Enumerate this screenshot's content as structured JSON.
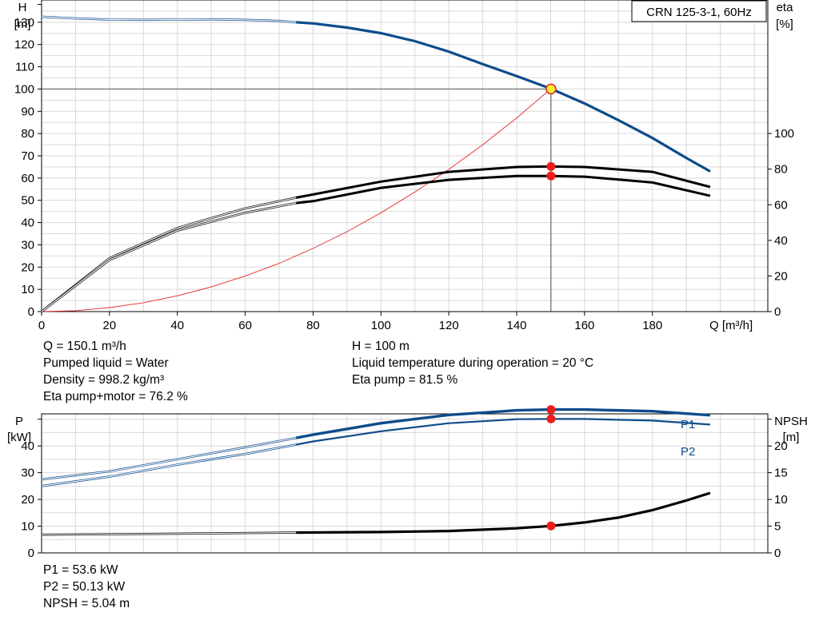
{
  "chart_data": [
    {
      "type": "line",
      "title": "CRN 125-3-1, 60Hz",
      "xlabel": "Q [m³/h]",
      "ylabel_left": [
        "H",
        "[m]"
      ],
      "ylabel_right": [
        "eta",
        "[%]"
      ],
      "xlim": [
        0,
        214
      ],
      "ylim_left": [
        0,
        140
      ],
      "ylim_right": [
        0,
        175
      ],
      "x_ticks": [
        0,
        20,
        40,
        60,
        80,
        100,
        120,
        140,
        160,
        180
      ],
      "y_ticks_left": [
        0,
        10,
        20,
        30,
        40,
        50,
        60,
        70,
        80,
        90,
        100,
        110,
        120,
        130
      ],
      "y_ticks_right": [
        0,
        20,
        40,
        60,
        80,
        100
      ],
      "grid": true,
      "series": [
        {
          "role": "head",
          "axis": "left",
          "color": "#0d4c8b",
          "x": [
            0,
            10,
            20,
            30,
            40,
            50,
            60,
            70,
            75,
            80,
            90,
            100,
            110,
            120,
            130,
            140,
            150,
            160,
            170,
            180,
            190,
            197
          ],
          "y": [
            132.5,
            131.7,
            131.2,
            131.1,
            131.2,
            131.3,
            131.1,
            130.6,
            130,
            129.5,
            127.6,
            125.1,
            121.5,
            116.8,
            111.2,
            105.8,
            100.2,
            93.5,
            86,
            78,
            69,
            63
          ]
        },
        {
          "role": "eta-pump",
          "axis": "right",
          "color": "#000000",
          "x": [
            0,
            20,
            40,
            60,
            75,
            80,
            100,
            120,
            140,
            150,
            160,
            180,
            197
          ],
          "y": [
            0,
            30,
            47,
            58,
            64,
            65.8,
            73,
            78.5,
            81.2,
            81.5,
            81.2,
            78.5,
            70
          ]
        },
        {
          "role": "eta-pump-motor",
          "axis": "right",
          "color": "#000000",
          "x": [
            0,
            20,
            40,
            60,
            75,
            80,
            100,
            120,
            140,
            150,
            160,
            180,
            197
          ],
          "y": [
            0,
            29,
            45.5,
            55.5,
            61,
            62,
            69.5,
            74,
            76.2,
            76.2,
            75.8,
            72.5,
            65
          ]
        },
        {
          "role": "system-curve",
          "axis": "left",
          "color": "#e32a2a",
          "x": [
            0,
            10,
            20,
            30,
            40,
            50,
            60,
            70,
            80,
            90,
            100,
            110,
            120,
            130,
            140,
            150
          ],
          "y": [
            0,
            0.4,
            1.8,
            4,
            7.1,
            11.1,
            16,
            21.7,
            28.4,
            35.9,
            44.4,
            53.7,
            63.9,
            75,
            87,
            100
          ]
        }
      ],
      "reference_line": {
        "x": 150.1,
        "y": 100
      }
    },
    {
      "type": "line",
      "ylabel_left": [
        "P",
        "[kW]"
      ],
      "ylabel_right": [
        "NPSH",
        "[m]"
      ],
      "xlim": [
        0,
        214
      ],
      "ylim_left": [
        0,
        52
      ],
      "ylim_right": [
        0,
        26
      ],
      "y_ticks_left": [
        0,
        10,
        20,
        30,
        40
      ],
      "y_ticks_right": [
        0,
        5,
        10,
        15,
        20
      ],
      "grid": true,
      "series": [
        {
          "name": "P1",
          "axis": "left",
          "color": "#0d4c8b",
          "x": [
            0,
            20,
            40,
            60,
            75,
            80,
            100,
            120,
            140,
            150,
            160,
            180,
            197
          ],
          "y": [
            27.5,
            30.5,
            35,
            39.5,
            43,
            44.2,
            48.5,
            51.6,
            53.3,
            53.6,
            53.6,
            53,
            51.5
          ]
        },
        {
          "name": "P2",
          "axis": "left",
          "color": "#0d4c8b",
          "x": [
            0,
            20,
            40,
            60,
            75,
            80,
            100,
            120,
            140,
            150,
            160,
            180,
            197
          ],
          "y": [
            25,
            28.5,
            33,
            37,
            40.5,
            41.7,
            45.5,
            48.5,
            50,
            50.1,
            50.1,
            49.5,
            48
          ]
        },
        {
          "name": "NPSH",
          "axis": "right",
          "color": "#000000",
          "x": [
            0,
            40,
            75,
            100,
            120,
            140,
            150,
            160,
            170,
            180,
            190,
            197
          ],
          "y": [
            3.4,
            3.6,
            3.8,
            3.9,
            4.1,
            4.6,
            5.04,
            5.7,
            6.6,
            8,
            9.8,
            11.2
          ]
        }
      ],
      "operating_point": {
        "q": 150.1,
        "p1": 53.6,
        "p2": 50.13,
        "npsh": 5.04
      }
    }
  ],
  "info": {
    "q": "Q = 150.1 m³/h",
    "liquid": "Pumped liquid = Water",
    "density": "Density = 998.2 kg/m³",
    "eta_total": "Eta pump+motor = 76.2 %",
    "h": "H = 100 m",
    "temp": "Liquid temperature during operation = 20 °C",
    "eta_pump": "Eta pump = 81.5 %",
    "p1": "P1 = 53.6 kW",
    "p2": "P2 = 50.13 kW",
    "npsh": "NPSH = 5.04 m"
  }
}
